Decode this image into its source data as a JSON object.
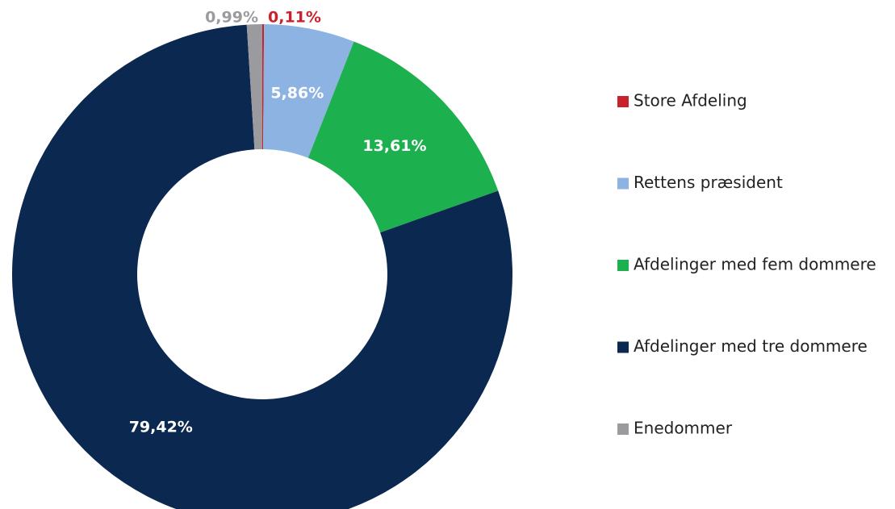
{
  "chart_data": {
    "type": "donut",
    "categories": [
      "Store Afdeling",
      "Rettens præsident",
      "Afdelinger med fem dommere",
      "Afdelinger med tre dommere",
      "Enedommer"
    ],
    "values": [
      0.11,
      5.86,
      13.61,
      79.42,
      0.99
    ],
    "value_labels": [
      "0,11%",
      "5,86%",
      "13,61%",
      "79,42%",
      "0,99%"
    ],
    "colors": [
      "#c8232c",
      "#8db3e2",
      "#1db04e",
      "#0a2850",
      "#9b9b9f"
    ],
    "legend": "right"
  }
}
